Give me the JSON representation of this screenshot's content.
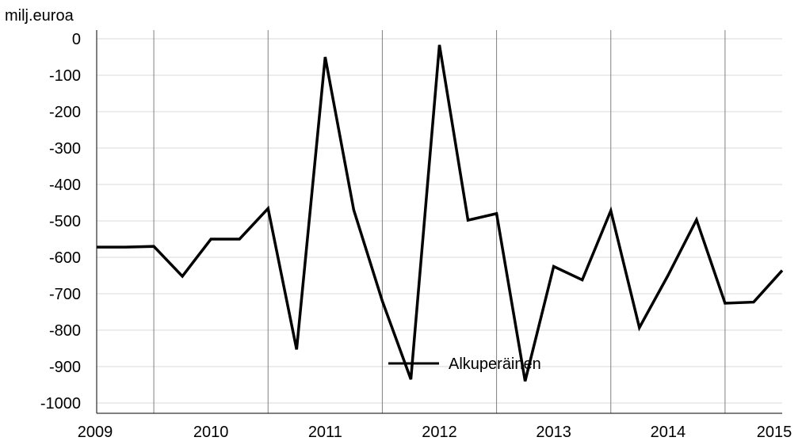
{
  "chart_data": {
    "type": "line",
    "ylabel": "milj.euroa",
    "ylim": [
      -1030,
      0
    ],
    "yticks": [
      0,
      -100,
      -200,
      -300,
      -400,
      -500,
      -600,
      -700,
      -800,
      -900,
      -1000
    ],
    "xlim": [
      2009,
      2015
    ],
    "xticks": [
      "2009",
      "2010",
      "2011",
      "2012",
      "2013",
      "2014",
      "2015"
    ],
    "year_dividers": [
      2009.5,
      2010.5,
      2011.5,
      2012.5,
      2013.5,
      2014.5
    ],
    "grid": true,
    "legend_position": "bottom-center",
    "series": [
      {
        "name": "Alkuperäinen",
        "color": "#000000",
        "x": [
          2009.0,
          2009.25,
          2009.5,
          2009.75,
          2010.0,
          2010.25,
          2010.5,
          2010.75,
          2011.0,
          2011.25,
          2011.5,
          2011.75,
          2012.0,
          2012.25,
          2012.5,
          2012.75,
          2013.0,
          2013.25,
          2013.5,
          2013.75,
          2014.0,
          2014.25,
          2014.5,
          2014.75,
          2015.0
        ],
        "values": [
          -572,
          -572,
          -570,
          -652,
          -550,
          -550,
          -466,
          -853,
          -50,
          -470,
          -720,
          -935,
          -17,
          -498,
          -480,
          -940,
          -625,
          -662,
          -472,
          -793,
          -650,
          -497,
          -726,
          -723,
          -636
        ]
      }
    ]
  }
}
